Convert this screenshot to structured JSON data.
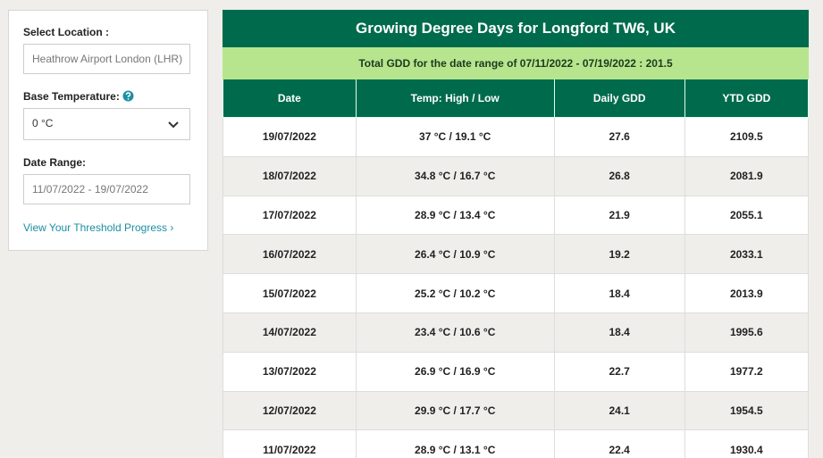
{
  "sidebar": {
    "location_label": "Select Location :",
    "location_value": "Heathrow Airport London (LHR)",
    "base_temp_label": "Base Temperature:",
    "base_temp_value": "0 °C",
    "date_range_label": "Date Range:",
    "date_range_value": "11/07/2022 - 19/07/2022",
    "link": "View Your Threshold Progress ›"
  },
  "table": {
    "title": "Growing Degree Days for Longford TW6, UK",
    "summary": "Total GDD for the date range of 07/11/2022 - 07/19/2022 : 201.5",
    "columns": [
      "Date",
      "Temp: High / Low",
      "Daily GDD",
      "YTD GDD"
    ],
    "rows": [
      [
        "19/07/2022",
        "37 °C / 19.1 °C",
        "27.6",
        "2109.5"
      ],
      [
        "18/07/2022",
        "34.8 °C / 16.7 °C",
        "26.8",
        "2081.9"
      ],
      [
        "17/07/2022",
        "28.9 °C / 13.4 °C",
        "21.9",
        "2055.1"
      ],
      [
        "16/07/2022",
        "26.4 °C / 10.9 °C",
        "19.2",
        "2033.1"
      ],
      [
        "15/07/2022",
        "25.2 °C / 10.2 °C",
        "18.4",
        "2013.9"
      ],
      [
        "14/07/2022",
        "23.4 °C / 10.6 °C",
        "18.4",
        "1995.6"
      ],
      [
        "13/07/2022",
        "26.9 °C / 16.9 °C",
        "22.7",
        "1977.2"
      ],
      [
        "12/07/2022",
        "29.9 °C / 17.7 °C",
        "24.1",
        "1954.5"
      ],
      [
        "11/07/2022",
        "28.9 °C / 13.1 °C",
        "22.4",
        "1930.4"
      ]
    ]
  }
}
